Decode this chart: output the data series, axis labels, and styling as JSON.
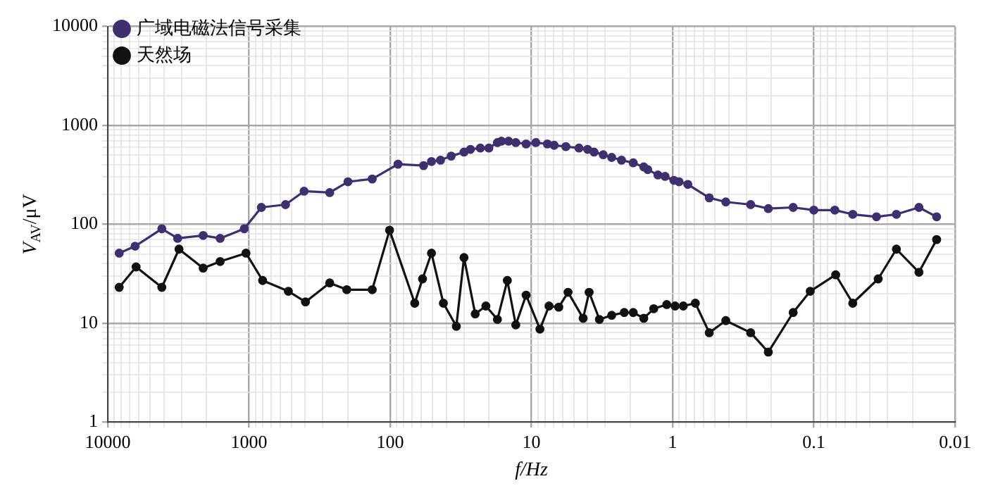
{
  "chart_data": {
    "type": "line",
    "xlabel": "f/Hz",
    "ylabel": "V$_{AV}$/μV",
    "log": "xy",
    "xlim": [
      10000,
      0.01
    ],
    "xticks": [
      10000,
      1000,
      100,
      10,
      1,
      0.1,
      0.01
    ],
    "ylim": [
      1,
      10000
    ],
    "yticks": [
      1,
      10,
      100,
      1000,
      10000
    ],
    "grid": true,
    "legend": "top left",
    "marker": "circle",
    "line_style": "solid",
    "series": [
      {
        "name": "广域电磁法信号采集",
        "color": "#3f2f6e",
        "x": [
          8300,
          6400,
          4140,
          3200,
          2110,
          1600,
          1080,
          817,
          551,
          407,
          268,
          199,
          134,
          88,
          58,
          51,
          44,
          37,
          30,
          27,
          23,
          20,
          17.4,
          16.3,
          14.5,
          12.9,
          10.9,
          9.3,
          7.7,
          6.9,
          5.7,
          4.6,
          4.0,
          3.6,
          3.1,
          2.7,
          2.3,
          1.9,
          1.6,
          1.5,
          1.27,
          1.13,
          0.98,
          0.9,
          0.78,
          0.55,
          0.42,
          0.28,
          0.21,
          0.14,
          0.1,
          0.071,
          0.053,
          0.036,
          0.026,
          0.018,
          0.0135
        ],
        "values": [
          51,
          60,
          90,
          72,
          77,
          72,
          90,
          148,
          158,
          216,
          209,
          269,
          287,
          405,
          392,
          431,
          445,
          489,
          537,
          572,
          590,
          590,
          670,
          692,
          692,
          670,
          649,
          670,
          649,
          629,
          610,
          590,
          572,
          537,
          505,
          474,
          445,
          418,
          380,
          357,
          315,
          305,
          278,
          269,
          253,
          185,
          168,
          158,
          144,
          148,
          139,
          139,
          126,
          119,
          126,
          148,
          119
        ]
      },
      {
        "name": "天然场",
        "color": "#111111",
        "x": [
          8300,
          6300,
          4140,
          3130,
          2110,
          1600,
          1050,
          800,
          526,
          398,
          268,
          203,
          134,
          101,
          67,
          59,
          51,
          42,
          34,
          30,
          25,
          21,
          17.4,
          14.8,
          12.9,
          10.9,
          8.7,
          7.5,
          6.4,
          5.5,
          4.3,
          3.9,
          3.3,
          2.7,
          2.2,
          1.9,
          1.6,
          1.36,
          1.1,
          0.96,
          0.84,
          0.69,
          0.55,
          0.42,
          0.28,
          0.21,
          0.14,
          0.106,
          0.07,
          0.053,
          0.035,
          0.026,
          0.018,
          0.0135
        ],
        "values": [
          23,
          37,
          23,
          56,
          36,
          42,
          51,
          27,
          21,
          16.4,
          25.5,
          21.8,
          21.8,
          87,
          15.9,
          28,
          51,
          15.9,
          9.3,
          46,
          12.4,
          14.9,
          10.9,
          27,
          9.6,
          19.2,
          8.7,
          14.9,
          14.5,
          20.5,
          11.2,
          20.5,
          10.9,
          12,
          12.8,
          12.8,
          11.2,
          14,
          15.4,
          14.9,
          14.9,
          15.9,
          8,
          10.6,
          8,
          5.1,
          12.8,
          21,
          30.8,
          15.9,
          28,
          56,
          32.7,
          70
        ]
      }
    ]
  }
}
